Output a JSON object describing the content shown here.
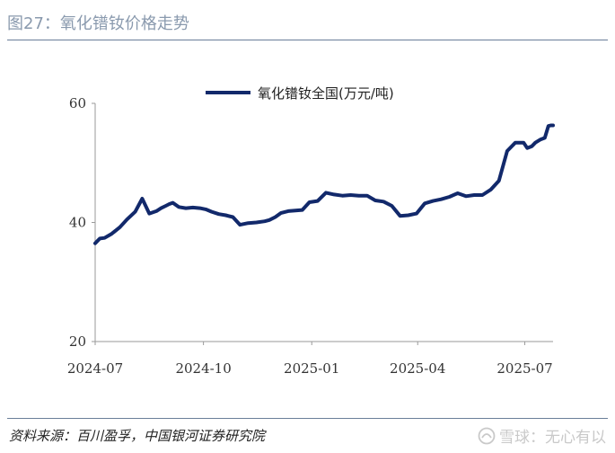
{
  "header": {
    "title": "图27：氧化镨钕价格走势"
  },
  "footer": {
    "source": "资料来源：百川盈孚，中国银河证券研究院"
  },
  "watermark": {
    "text": "雪球：无心有以",
    "icon": "snowball-icon"
  },
  "chart_data": {
    "type": "line",
    "title": "",
    "xlabel": "",
    "ylabel": "",
    "ylim": [
      20,
      60
    ],
    "yticks": [
      20,
      40,
      60
    ],
    "xticks": [
      "2024-07",
      "2024-10",
      "2025-01",
      "2025-04",
      "2025-07"
    ],
    "xrange": [
      "2024-07-01",
      "2025-07-25"
    ],
    "grid": false,
    "legend_position": "top-center",
    "color": "#12296b",
    "series": [
      {
        "name": "氧化镨钕全国(万元/吨)",
        "x": [
          "2024-07-01",
          "2024-07-05",
          "2024-07-09",
          "2024-07-15",
          "2024-07-22",
          "2024-07-28",
          "2024-08-04",
          "2024-08-10",
          "2024-08-16",
          "2024-08-22",
          "2024-08-26",
          "2024-08-30",
          "2024-09-02",
          "2024-09-05",
          "2024-09-10",
          "2024-09-16",
          "2024-09-22",
          "2024-09-28",
          "2024-10-03",
          "2024-10-08",
          "2024-10-14",
          "2024-10-20",
          "2024-10-26",
          "2024-11-01",
          "2024-11-08",
          "2024-11-15",
          "2024-11-22",
          "2024-11-26",
          "2024-12-01",
          "2024-12-06",
          "2024-12-12",
          "2024-12-18",
          "2024-12-24",
          "2024-12-30",
          "2025-01-06",
          "2025-01-13",
          "2025-01-20",
          "2025-01-27",
          "2025-02-03",
          "2025-02-10",
          "2025-02-17",
          "2025-02-24",
          "2025-03-03",
          "2025-03-10",
          "2025-03-17",
          "2025-03-24",
          "2025-03-31",
          "2025-04-07",
          "2025-04-14",
          "2025-04-21",
          "2025-04-28",
          "2025-05-05",
          "2025-05-12",
          "2025-05-19",
          "2025-05-26",
          "2025-06-02",
          "2025-06-09",
          "2025-06-16",
          "2025-06-23",
          "2025-06-30",
          "2025-07-03",
          "2025-07-07",
          "2025-07-10",
          "2025-07-14",
          "2025-07-18",
          "2025-07-21",
          "2025-07-23",
          "2025-07-25"
        ],
        "values": [
          36.5,
          37.3,
          37.4,
          38.1,
          39.2,
          40.5,
          41.8,
          44.0,
          41.5,
          41.9,
          42.4,
          42.8,
          43.1,
          43.3,
          42.6,
          42.4,
          42.5,
          42.4,
          42.2,
          41.8,
          41.4,
          41.2,
          40.9,
          39.6,
          39.9,
          40.0,
          40.2,
          40.4,
          40.9,
          41.6,
          41.9,
          42.0,
          42.1,
          43.4,
          43.6,
          45.0,
          44.7,
          44.5,
          44.6,
          44.5,
          44.5,
          43.7,
          43.5,
          42.8,
          41.1,
          41.2,
          41.5,
          43.2,
          43.6,
          43.9,
          44.3,
          44.9,
          44.4,
          44.6,
          44.6,
          45.5,
          47.0,
          52.0,
          53.4,
          53.4,
          52.5,
          52.8,
          53.4,
          53.9,
          54.2,
          56.2,
          56.3,
          56.3
        ]
      }
    ]
  }
}
